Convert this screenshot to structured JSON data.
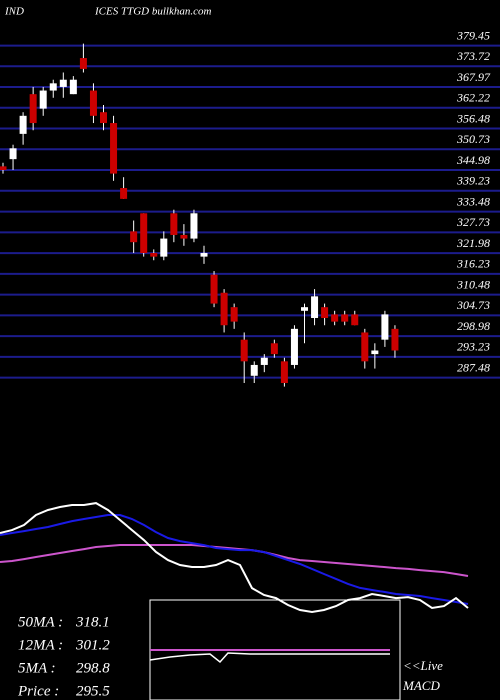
{
  "header": {
    "left": "IND",
    "center": "ICES TTGD bullkhan.com"
  },
  "chart_data": [
    {
      "type": "candlestick",
      "open": [
        346,
        348,
        355,
        366,
        362,
        367,
        368,
        366,
        376,
        367,
        361,
        358,
        340,
        328,
        333,
        322,
        321,
        333,
        327,
        326,
        321,
        316,
        311,
        307,
        298,
        288,
        291,
        297,
        292,
        291,
        306,
        304,
        307,
        305,
        305,
        305,
        300,
        294,
        298,
        301
      ],
      "high": [
        347,
        352,
        361,
        368,
        368,
        370,
        372,
        371,
        380,
        369,
        363,
        360,
        343,
        331,
        333,
        323,
        328,
        334,
        330,
        334,
        324,
        317,
        312,
        308,
        300,
        292,
        294,
        298,
        293,
        302,
        308,
        312,
        308,
        306,
        306,
        306,
        301,
        297,
        306,
        302
      ],
      "low": [
        344,
        345,
        352,
        356,
        360,
        365,
        365,
        366,
        372,
        358,
        356,
        342,
        337,
        322,
        321,
        320,
        320,
        325,
        324,
        325,
        319,
        307,
        300,
        301,
        286,
        286,
        289,
        293,
        285,
        290,
        297,
        302,
        302,
        302,
        302,
        302,
        290,
        290,
        296,
        293
      ],
      "close": [
        345,
        351,
        360,
        358,
        367,
        369,
        370,
        370,
        373,
        360,
        358,
        344,
        337,
        325,
        322,
        321,
        326,
        327,
        326,
        333,
        322,
        308,
        302,
        303,
        292,
        291,
        293,
        294,
        286,
        301,
        307,
        310,
        304,
        303,
        303,
        302,
        292,
        295,
        305,
        295
      ],
      "up_color": "#ffffff",
      "down_color": "#cc0000",
      "grid_color": "#1c1c8c",
      "ylim": [
        286,
        381
      ],
      "yticks": [
        379.45,
        373.72,
        367.97,
        362.22,
        356.48,
        350.73,
        344.98,
        339.23,
        333.48,
        327.73,
        321.98,
        316.23,
        310.48,
        304.73,
        298.98,
        293.23,
        287.48
      ]
    },
    {
      "type": "line",
      "ylim": [
        270,
        390
      ],
      "series": [
        {
          "name": "50MA",
          "color": "#cc55cc",
          "values": [
            331.6,
            332.4,
            333.9,
            335.5,
            337.1,
            338.7,
            340.3,
            341.8,
            343.4,
            344.2,
            345.0,
            345.0,
            345.0,
            345.0,
            345.0,
            345.0,
            345.0,
            344.2,
            343.4,
            342.6,
            341.8,
            341.0,
            339.4,
            337.1,
            334.7,
            333.1,
            332.4,
            331.6,
            330.8,
            330.0,
            329.2,
            328.4,
            327.6,
            326.8,
            326.1,
            325.2,
            324.4,
            323.6,
            322.1,
            320.5
          ]
        },
        {
          "name": "12MA",
          "color": "#1a1ae6",
          "values": [
            352.9,
            354.5,
            356.0,
            357.6,
            359.2,
            361.6,
            363.9,
            365.5,
            367.1,
            368.7,
            368.7,
            365.5,
            360.8,
            355.2,
            350.5,
            348.1,
            346.5,
            344.9,
            342.6,
            341.8,
            341.0,
            341.0,
            339.4,
            336.3,
            333.1,
            330.0,
            326.1,
            322.1,
            318.2,
            314.3,
            311.1,
            309.5,
            308.0,
            306.3,
            305.5,
            304.7,
            303.1,
            301.6,
            300.0,
            298.4
          ]
        },
        {
          "name": "5MA",
          "color": "#ffffff",
          "values": [
            354.5,
            356.8,
            360.8,
            368.7,
            372.6,
            375.0,
            376.6,
            376.6,
            378.1,
            372.6,
            364.7,
            356.8,
            348.9,
            339.5,
            333.1,
            329.2,
            327.6,
            327.6,
            329.2,
            333.1,
            329.2,
            311.0,
            305.5,
            303.1,
            297.6,
            293.7,
            292.1,
            293.7,
            296.8,
            301.6,
            303.1,
            306.3,
            304.7,
            303.1,
            303.9,
            301.6,
            295.3,
            296.8,
            303.1,
            295.3
          ]
        }
      ],
      "legend": [
        {
          "label": "50MA :",
          "value": 318.1
        },
        {
          "label": "12MA :",
          "value": 301.2
        },
        {
          "label": "5MA :",
          "value": 298.8
        },
        {
          "label": "Price  :",
          "value": 295.5
        }
      ],
      "macd_label": [
        "<<Live",
        "MACD"
      ]
    }
  ]
}
